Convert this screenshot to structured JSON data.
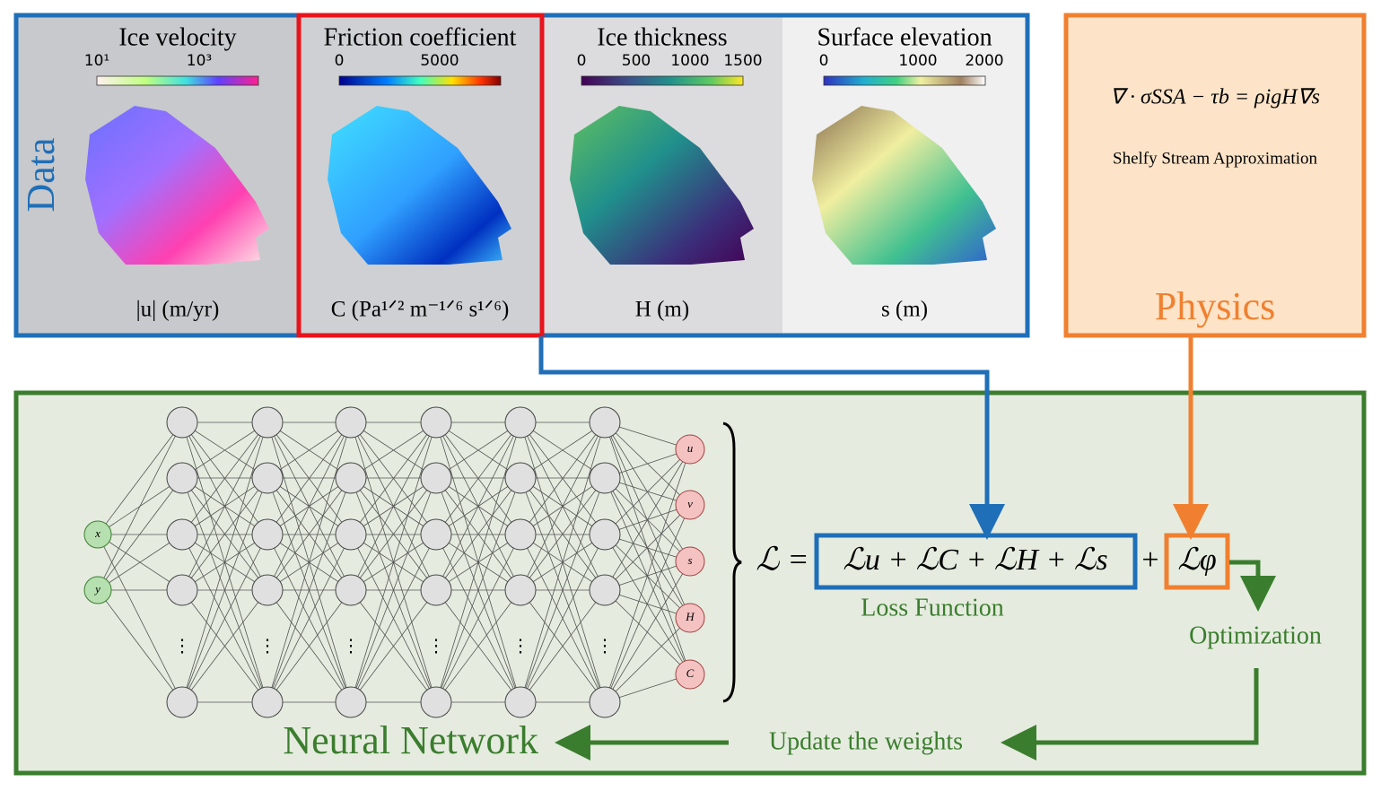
{
  "data_panel": {
    "label": "Data",
    "panels": [
      {
        "title": "Ice velocity",
        "colorbar_ticks": [
          "10¹",
          "10³"
        ],
        "axis_label": "|u| (m/yr)"
      },
      {
        "title": "Friction coefficient",
        "colorbar_ticks": [
          "0",
          "5000"
        ],
        "axis_label": "C (Pa¹ᐟ² m⁻¹ᐟ⁶ s¹ᐟ⁶)"
      },
      {
        "title": "Ice thickness",
        "colorbar_ticks": [
          "0",
          "500",
          "1000",
          "1500"
        ],
        "axis_label": "H (m)"
      },
      {
        "title": "Surface elevation",
        "colorbar_ticks": [
          "0",
          "1000",
          "2000"
        ],
        "axis_label": "s (m)"
      }
    ]
  },
  "physics": {
    "equation": "∇ · σSSA − τb = ρigH∇s",
    "caption": "Shelfy Stream Approximation",
    "label": "Physics"
  },
  "network": {
    "inputs": [
      "x",
      "y"
    ],
    "outputs": [
      "u",
      "v",
      "s",
      "H",
      "C"
    ],
    "ellipsis": "⋮",
    "label": "Neural Network"
  },
  "loss": {
    "lhs": "ℒ =",
    "data_terms": "ℒu + ℒC + ℒH + ℒs",
    "plus": "+",
    "physics_term": "ℒφ",
    "label": "Loss Function"
  },
  "optimization": "Optimization",
  "update": "Update the weights"
}
